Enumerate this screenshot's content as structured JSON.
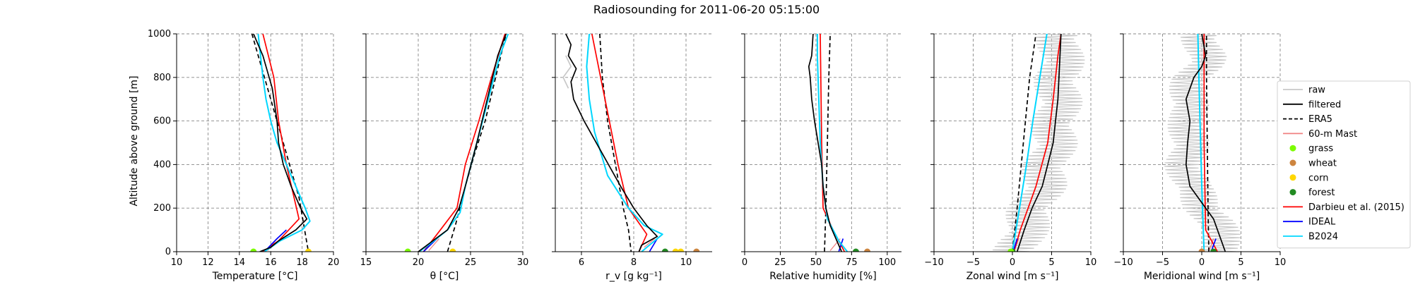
{
  "chart_data": {
    "type": "line",
    "title": "Radiosounding for 2011-06-20 05:15:00",
    "ylabel": "Altitude above ground [m]",
    "ylim": [
      0,
      1000
    ],
    "yticks": [
      0,
      200,
      400,
      600,
      800,
      1000
    ],
    "grid": true,
    "legend_position": "right",
    "legend": [
      {
        "name": "raw",
        "color": "#c8c8c8",
        "kind": "line"
      },
      {
        "name": "filtered",
        "color": "#000000",
        "kind": "line"
      },
      {
        "name": "ERA5",
        "color": "#000000",
        "kind": "dashed"
      },
      {
        "name": "60-m Mast",
        "color": "#f08080",
        "kind": "line"
      },
      {
        "name": "grass",
        "color": "#7cfc00",
        "kind": "dot"
      },
      {
        "name": "wheat",
        "color": "#cd853f",
        "kind": "dot"
      },
      {
        "name": "corn",
        "color": "#ffd700",
        "kind": "dot"
      },
      {
        "name": "forest",
        "color": "#228b22",
        "kind": "dot"
      },
      {
        "name": "Darbieu et al. (2015)",
        "color": "#ff0000",
        "kind": "line"
      },
      {
        "name": "IDEAL",
        "color": "#0000ff",
        "kind": "line"
      },
      {
        "name": "B2024",
        "color": "#00d7ff",
        "kind": "line"
      }
    ],
    "panels": [
      {
        "xlabel": "Temperature [°C]",
        "xlim": [
          10,
          20
        ],
        "xticks": [
          10,
          12,
          14,
          16,
          18,
          20
        ],
        "series": [
          {
            "style": "ERA5",
            "x": [
              14.8,
              15.4,
              16.0,
              16.6,
              17.2,
              17.8,
              18.4
            ],
            "y": [
              1000,
              850,
              700,
              550,
              400,
              250,
              0
            ]
          },
          {
            "style": "60-m Mast",
            "x": [
              15.8,
              16.4
            ],
            "y": [
              5,
              60
            ]
          },
          {
            "style": "Darbieu et al. (2015)",
            "x": [
              15.5,
              16.5,
              17.8,
              17.0,
              16.5,
              16.2,
              15.5
            ],
            "y": [
              0,
              50,
              150,
              400,
              600,
              800,
              1000
            ]
          },
          {
            "style": "IDEAL",
            "x": [
              15.6,
              16.4,
              17.0
            ],
            "y": [
              0,
              60,
              100
            ]
          },
          {
            "style": "B2024",
            "x": [
              15.6,
              16.6,
              18.0,
              18.5,
              18.2,
              17.6,
              17.0,
              16.4,
              16.0,
              15.7,
              15.5,
              15.2
            ],
            "y": [
              0,
              50,
              100,
              140,
              200,
              300,
              400,
              500,
              600,
              700,
              800,
              1000
            ]
          },
          {
            "style": "filtered",
            "x": [
              15.3,
              16.0,
              16.5,
              17.6,
              18.3,
              17.9,
              17.3,
              16.8,
              16.5,
              16.4,
              16.3,
              16.1,
              15.5,
              14.9
            ],
            "y": [
              0,
              20,
              50,
              100,
              150,
              200,
              300,
              400,
              500,
              600,
              650,
              750,
              900,
              1000
            ]
          },
          {
            "style": "grass",
            "x": [
              14.9
            ],
            "y": [
              0
            ]
          },
          {
            "style": "corn",
            "x": [
              18.4
            ],
            "y": [
              0
            ]
          }
        ]
      },
      {
        "xlabel": "θ [°C]",
        "xlim": [
          15,
          30
        ],
        "xticks": [
          15,
          20,
          25,
          30
        ],
        "series": [
          {
            "style": "ERA5",
            "x": [
              22.8,
              23.6,
              24.5,
              25.4,
              26.4,
              27.4,
              28.4
            ],
            "y": [
              0,
              130,
              300,
              450,
              600,
              800,
              1000
            ]
          },
          {
            "style": "60-m Mast",
            "x": [
              21.0,
              22.0
            ],
            "y": [
              5,
              60
            ]
          },
          {
            "style": "Darbieu et al. (2015)",
            "x": [
              20.5,
              21.8,
              23.7,
              24.5,
              25.8,
              27.0,
              28.3
            ],
            "y": [
              0,
              80,
              200,
              400,
              600,
              800,
              1000
            ]
          },
          {
            "style": "IDEAL",
            "x": [
              20.5,
              22.0
            ],
            "y": [
              0,
              70
            ]
          },
          {
            "style": "B2024",
            "x": [
              20.1,
              21.5,
              22.8,
              24.0,
              24.5,
              25.6,
              26.7,
              27.8,
              28.6
            ],
            "y": [
              0,
              50,
              100,
              180,
              300,
              500,
              700,
              900,
              1000
            ]
          },
          {
            "style": "filtered",
            "x": [
              20.0,
              21.4,
              22.8,
              23.9,
              24.5,
              25.6,
              26.6,
              27.6,
              28.4
            ],
            "y": [
              0,
              50,
              100,
              200,
              300,
              500,
              700,
              900,
              1000
            ]
          },
          {
            "style": "grass",
            "x": [
              19.0
            ],
            "y": [
              0
            ]
          },
          {
            "style": "corn",
            "x": [
              23.3
            ],
            "y": [
              0
            ]
          }
        ]
      },
      {
        "xlabel": "r_v [g kg⁻¹]",
        "xlim": [
          5,
          11
        ],
        "xticks": [
          6,
          8,
          10
        ],
        "series": [
          {
            "style": "ERA5",
            "x": [
              6.7,
              6.8,
              7.0,
              7.3,
              7.6,
              7.8,
              7.9
            ],
            "y": [
              1000,
              800,
              600,
              400,
              200,
              100,
              0
            ]
          },
          {
            "style": "60-m Mast",
            "x": [
              8.4,
              8.8
            ],
            "y": [
              20,
              60
            ]
          },
          {
            "style": "Darbieu et al. (2015)",
            "x": [
              8.2,
              8.5,
              7.8,
              7.4,
              6.9,
              6.4
            ],
            "y": [
              0,
              80,
              200,
              400,
              700,
              1000
            ]
          },
          {
            "style": "IDEAL",
            "x": [
              8.6,
              8.9
            ],
            "y": [
              0,
              60
            ]
          },
          {
            "style": "B2024",
            "x": [
              8.3,
              8.7,
              9.1,
              8.4,
              7.8,
              7.0,
              6.5,
              6.3,
              6.2,
              6.3
            ],
            "y": [
              0,
              40,
              80,
              120,
              200,
              350,
              550,
              700,
              850,
              1000
            ]
          },
          {
            "style": "filtered",
            "x": [
              8.2,
              8.3,
              8.9,
              8.5,
              8.0,
              7.5,
              6.8,
              6.1,
              5.7,
              5.6,
              5.8,
              5.5,
              5.6,
              5.4
            ],
            "y": [
              0,
              30,
              70,
              120,
              200,
              300,
              450,
              600,
              700,
              780,
              840,
              900,
              950,
              1000
            ]
          },
          {
            "style": "raw",
            "x": [
              5.5,
              5.3,
              5.6,
              5.4
            ],
            "y": [
              750,
              800,
              850,
              900
            ]
          },
          {
            "style": "forest",
            "x": [
              9.2
            ],
            "y": [
              0
            ]
          },
          {
            "style": "corn",
            "x": [
              9.6,
              9.8
            ],
            "y": [
              0,
              0
            ]
          },
          {
            "style": "wheat",
            "x": [
              10.4
            ],
            "y": [
              0
            ]
          }
        ]
      },
      {
        "xlabel": "Relative humidity [%]",
        "xlim": [
          0,
          110
        ],
        "xticks": [
          0,
          25,
          50,
          75,
          100
        ],
        "series": [
          {
            "style": "ERA5",
            "x": [
              56,
              57,
              58,
              59,
              60
            ],
            "y": [
              0,
              200,
              500,
              800,
              1000
            ]
          },
          {
            "style": "60-m Mast",
            "x": [
              60,
              67
            ],
            "y": [
              5,
              60
            ]
          },
          {
            "style": "Darbieu et al. (2015)",
            "x": [
              70,
              62,
              55,
              54,
              53
            ],
            "y": [
              0,
              100,
              200,
              500,
              1000
            ]
          },
          {
            "style": "IDEAL",
            "x": [
              66,
              69
            ],
            "y": [
              0,
              60
            ]
          },
          {
            "style": "B2024",
            "x": [
              72,
              66,
              58,
              55,
              53,
              52,
              51,
              51
            ],
            "y": [
              0,
              50,
              150,
              300,
              500,
              700,
              900,
              1000
            ]
          },
          {
            "style": "filtered",
            "x": [
              68,
              64,
              60,
              57,
              55,
              54,
              49,
              47,
              46,
              45,
              47,
              48
            ],
            "y": [
              0,
              60,
              120,
              200,
              300,
              400,
              600,
              700,
              800,
              850,
              900,
              1000
            ]
          },
          {
            "style": "forest",
            "x": [
              78
            ],
            "y": [
              0
            ]
          },
          {
            "style": "wheat",
            "x": [
              86
            ],
            "y": [
              0
            ]
          }
        ]
      },
      {
        "xlabel": "Zonal wind [m s⁻¹]",
        "xlim": [
          -10,
          10
        ],
        "xticks": [
          -10,
          -5,
          0,
          5,
          10
        ],
        "series": [
          {
            "style": "ERA5",
            "x": [
              0.0,
              0.6,
              1.4,
              2.2,
              2.8,
              3.0
            ],
            "y": [
              0,
              200,
              500,
              800,
              950,
              1000
            ]
          },
          {
            "style": "60-m Mast",
            "x": [
              0.3,
              0.8
            ],
            "y": [
              10,
              60
            ]
          },
          {
            "style": "Darbieu et al. (2015)",
            "x": [
              0.2,
              1.0,
              3.0,
              4.5,
              5.2,
              5.8,
              6.2
            ],
            "y": [
              0,
              100,
              300,
              500,
              700,
              900,
              1000
            ]
          },
          {
            "style": "IDEAL",
            "x": [
              0.1,
              0.6
            ],
            "y": [
              0,
              60
            ]
          },
          {
            "style": "B2024",
            "x": [
              0.0,
              0.9,
              1.8,
              2.6,
              3.5,
              4.4
            ],
            "y": [
              0,
              200,
              400,
              600,
              800,
              1000
            ]
          },
          {
            "style": "filtered",
            "x": [
              0.6,
              1.5,
              2.5,
              3.8,
              4.5,
              5.2,
              5.5,
              5.8,
              6.0,
              6.2
            ],
            "y": [
              0,
              100,
              200,
              300,
              400,
              500,
              600,
              700,
              850,
              1000
            ]
          },
          {
            "style": "forest",
            "x": [
              0.0
            ],
            "y": [
              0
            ]
          },
          {
            "style": "grass",
            "x": [
              -0.2
            ],
            "y": [
              0
            ]
          }
        ]
      },
      {
        "xlabel": "Meridional wind [m s⁻¹]",
        "xlim": [
          -10,
          10
        ],
        "xticks": [
          -10,
          -5,
          0,
          5,
          10
        ],
        "series": [
          {
            "style": "ERA5",
            "x": [
              0.9,
              0.8,
              0.7,
              0.6,
              0.6
            ],
            "y": [
              0,
              200,
              500,
              800,
              1000
            ]
          },
          {
            "style": "60-m Mast",
            "x": [
              1.0,
              1.5
            ],
            "y": [
              10,
              60
            ]
          },
          {
            "style": "Darbieu et al. (2015)",
            "x": [
              2.0,
              0.5,
              0.3,
              0.3
            ],
            "y": [
              0,
              100,
              500,
              1000
            ]
          },
          {
            "style": "IDEAL",
            "x": [
              1.2,
              1.8
            ],
            "y": [
              0,
              60
            ]
          },
          {
            "style": "B2024",
            "x": [
              0.3,
              0.0,
              -0.3,
              -0.5
            ],
            "y": [
              0,
              300,
              700,
              1000
            ]
          },
          {
            "style": "filtered",
            "x": [
              3.0,
              2.5,
              1.5,
              -1.5,
              -2.0,
              -1.8,
              -1.5,
              -2.0,
              -1.0,
              0.0,
              0.5,
              0.0
            ],
            "y": [
              0,
              50,
              150,
              300,
              400,
              500,
              600,
              700,
              800,
              850,
              900,
              1000
            ]
          },
          {
            "style": "wheat",
            "x": [
              0.0
            ],
            "y": [
              0
            ]
          },
          {
            "style": "forest",
            "x": [
              1.5
            ],
            "y": [
              0
            ]
          }
        ]
      }
    ]
  }
}
